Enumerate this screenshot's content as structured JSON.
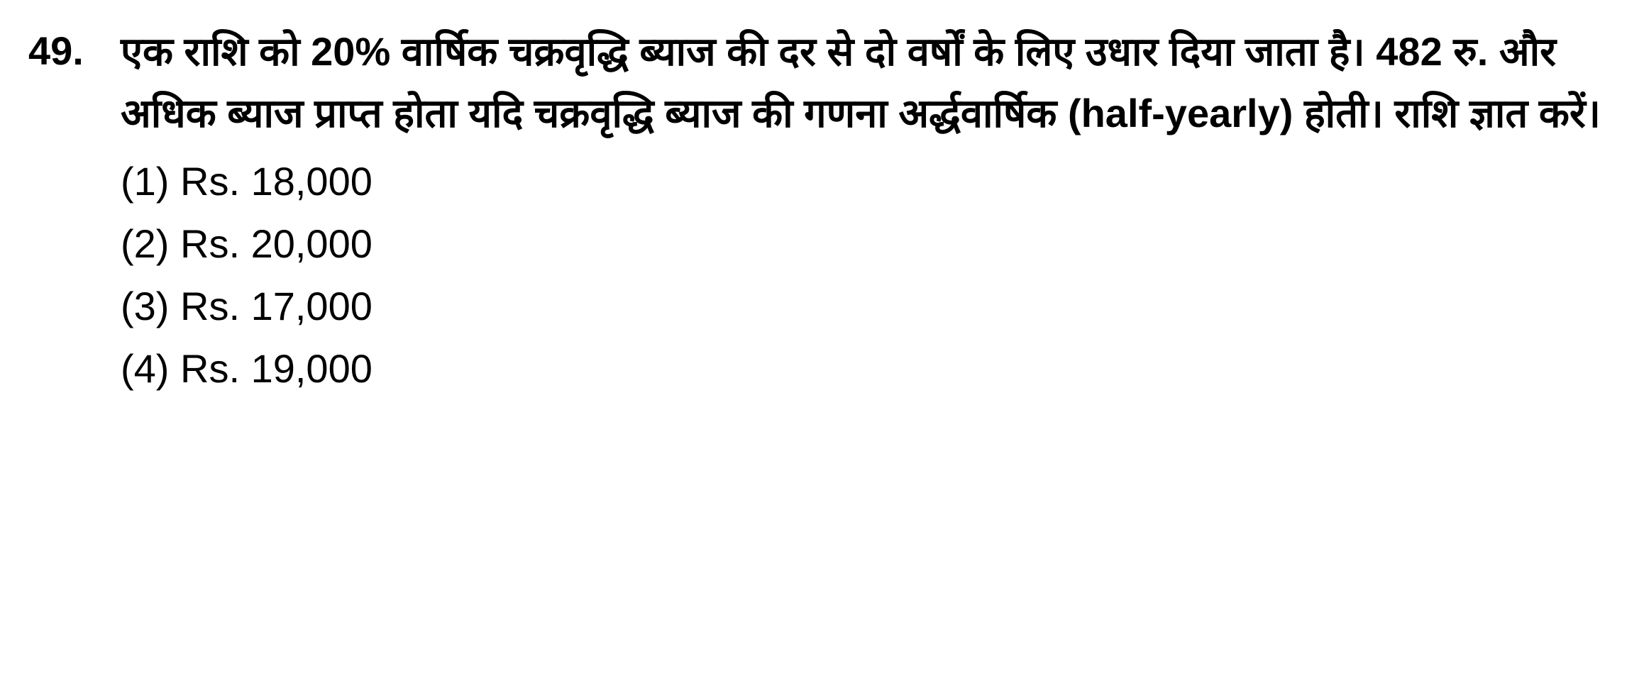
{
  "question": {
    "number": "49.",
    "text": "एक राशि को 20% वार्षिक चक्रवृद्धि ब्याज की दर से दो वर्षों के लिए उधार दिया जाता है। 482 रु. और अधिक ब्याज प्राप्त होता यदि चक्रवृद्धि ब्याज की गणना अर्द्धवार्षिक (half-yearly) होती। राशि ज्ञात करें।",
    "options": [
      {
        "label": "(1)",
        "value": "Rs. 18,000"
      },
      {
        "label": "(2)",
        "value": "Rs. 20,000"
      },
      {
        "label": "(3)",
        "value": "Rs. 17,000"
      },
      {
        "label": "(4)",
        "value": "Rs. 19,000"
      }
    ]
  },
  "styling": {
    "background_color": "#ffffff",
    "text_color": "#000000",
    "question_fontsize": 56,
    "question_fontweight": "bold",
    "option_fontsize": 56,
    "option_fontweight": "normal",
    "line_height": 1.55,
    "font_family": "Arial, sans-serif"
  }
}
